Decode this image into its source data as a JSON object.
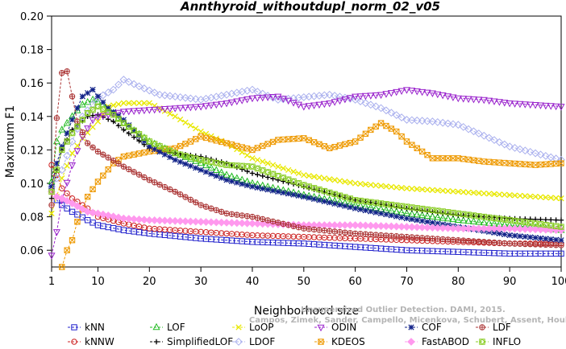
{
  "chart_data": {
    "type": "line",
    "title": "Annthyroid_withoutdupl_norm_02_v05",
    "xlabel": "Neighborhood size",
    "ylabel": "Maximum F1",
    "xlim": [
      1,
      100
    ],
    "ylim": [
      0.05,
      0.2
    ],
    "xticks": [
      1,
      10,
      20,
      30,
      40,
      50,
      60,
      70,
      80,
      90,
      100
    ],
    "yticks": [
      0.06,
      0.08,
      0.1,
      0.12,
      0.14,
      0.16,
      0.18,
      0.2
    ],
    "ytick_labels": [
      "0.06",
      "0.08",
      "0.10",
      "0.12",
      "0.14",
      "0.16",
      "0.18",
      "0.20"
    ],
    "grid": false,
    "legend_position": "bottom",
    "series": [
      {
        "name": "kNN",
        "color": "#2020cc",
        "marker": "square",
        "points": [
          [
            1,
            0.097
          ],
          [
            2,
            0.09
          ],
          [
            3,
            0.087
          ],
          [
            5,
            0.083
          ],
          [
            8,
            0.078
          ],
          [
            10,
            0.075
          ],
          [
            15,
            0.072
          ],
          [
            20,
            0.07
          ],
          [
            30,
            0.067
          ],
          [
            40,
            0.065
          ],
          [
            50,
            0.064
          ],
          [
            60,
            0.062
          ],
          [
            70,
            0.06
          ],
          [
            80,
            0.059
          ],
          [
            90,
            0.058
          ],
          [
            100,
            0.058
          ]
        ]
      },
      {
        "name": "kNNW",
        "color": "#cc2020",
        "marker": "circle",
        "points": [
          [
            1,
            0.111
          ],
          [
            2,
            0.105
          ],
          [
            3,
            0.097
          ],
          [
            5,
            0.091
          ],
          [
            8,
            0.085
          ],
          [
            10,
            0.08
          ],
          [
            15,
            0.076
          ],
          [
            20,
            0.073
          ],
          [
            30,
            0.071
          ],
          [
            40,
            0.069
          ],
          [
            50,
            0.068
          ],
          [
            60,
            0.067
          ],
          [
            70,
            0.066
          ],
          [
            80,
            0.065
          ],
          [
            90,
            0.064
          ],
          [
            100,
            0.064
          ]
        ]
      },
      {
        "name": "LOF",
        "color": "#22bb22",
        "marker": "triangle-up",
        "points": [
          [
            1,
            0.101
          ],
          [
            2,
            0.125
          ],
          [
            3,
            0.132
          ],
          [
            5,
            0.14
          ],
          [
            7,
            0.147
          ],
          [
            9,
            0.15
          ],
          [
            11,
            0.147
          ],
          [
            13,
            0.142
          ],
          [
            15,
            0.136
          ],
          [
            20,
            0.125
          ],
          [
            25,
            0.118
          ],
          [
            30,
            0.112
          ],
          [
            35,
            0.105
          ],
          [
            40,
            0.1
          ],
          [
            50,
            0.093
          ],
          [
            60,
            0.087
          ],
          [
            70,
            0.082
          ],
          [
            80,
            0.078
          ],
          [
            90,
            0.075
          ],
          [
            100,
            0.072
          ]
        ]
      },
      {
        "name": "SimplifiedLOF",
        "color": "#000000",
        "marker": "plus",
        "points": [
          [
            1,
            0.091
          ],
          [
            2,
            0.108
          ],
          [
            3,
            0.12
          ],
          [
            5,
            0.132
          ],
          [
            8,
            0.14
          ],
          [
            10,
            0.141
          ],
          [
            13,
            0.137
          ],
          [
            15,
            0.132
          ],
          [
            20,
            0.121
          ],
          [
            25,
            0.118
          ],
          [
            30,
            0.116
          ],
          [
            35,
            0.112
          ],
          [
            40,
            0.106
          ],
          [
            50,
            0.098
          ],
          [
            60,
            0.09
          ],
          [
            70,
            0.085
          ],
          [
            80,
            0.081
          ],
          [
            90,
            0.079
          ],
          [
            100,
            0.078
          ]
        ]
      },
      {
        "name": "LoOP",
        "color": "#e8e800",
        "marker": "cross",
        "points": [
          [
            1,
            0.082
          ],
          [
            2,
            0.092
          ],
          [
            3,
            0.103
          ],
          [
            5,
            0.118
          ],
          [
            7,
            0.127
          ],
          [
            10,
            0.137
          ],
          [
            12,
            0.146
          ],
          [
            15,
            0.148
          ],
          [
            20,
            0.148
          ],
          [
            25,
            0.14
          ],
          [
            30,
            0.131
          ],
          [
            35,
            0.124
          ],
          [
            40,
            0.115
          ],
          [
            50,
            0.105
          ],
          [
            60,
            0.1
          ],
          [
            70,
            0.097
          ],
          [
            80,
            0.095
          ],
          [
            90,
            0.093
          ],
          [
            100,
            0.091
          ]
        ]
      },
      {
        "name": "LDOF",
        "color": "#aab0ee",
        "marker": "diamond",
        "points": [
          [
            1,
            0.098
          ],
          [
            3,
            0.108
          ],
          [
            5,
            0.125
          ],
          [
            7,
            0.14
          ],
          [
            10,
            0.151
          ],
          [
            13,
            0.156
          ],
          [
            15,
            0.162
          ],
          [
            18,
            0.158
          ],
          [
            22,
            0.153
          ],
          [
            30,
            0.15
          ],
          [
            40,
            0.156
          ],
          [
            45,
            0.15
          ],
          [
            55,
            0.153
          ],
          [
            60,
            0.15
          ],
          [
            65,
            0.145
          ],
          [
            70,
            0.138
          ],
          [
            75,
            0.137
          ],
          [
            80,
            0.135
          ],
          [
            90,
            0.122
          ],
          [
            95,
            0.118
          ],
          [
            100,
            0.114
          ]
        ]
      },
      {
        "name": "ODIN",
        "color": "#9922cc",
        "marker": "triangle-down",
        "points": [
          [
            1,
            0.057
          ],
          [
            2,
            0.071
          ],
          [
            3,
            0.09
          ],
          [
            5,
            0.111
          ],
          [
            7,
            0.128
          ],
          [
            9,
            0.138
          ],
          [
            10,
            0.14
          ],
          [
            12,
            0.141
          ],
          [
            15,
            0.143
          ],
          [
            20,
            0.144
          ],
          [
            25,
            0.145
          ],
          [
            30,
            0.146
          ],
          [
            35,
            0.148
          ],
          [
            40,
            0.151
          ],
          [
            45,
            0.152
          ],
          [
            50,
            0.146
          ],
          [
            55,
            0.148
          ],
          [
            60,
            0.152
          ],
          [
            65,
            0.153
          ],
          [
            70,
            0.156
          ],
          [
            75,
            0.154
          ],
          [
            80,
            0.151
          ],
          [
            85,
            0.15
          ],
          [
            90,
            0.148
          ],
          [
            95,
            0.147
          ],
          [
            100,
            0.146
          ]
        ]
      },
      {
        "name": "KDEOS",
        "color": "#ee9900",
        "marker": "square-x",
        "points": [
          [
            3,
            0.05
          ],
          [
            4,
            0.06
          ],
          [
            5,
            0.066
          ],
          [
            6,
            0.077
          ],
          [
            8,
            0.092
          ],
          [
            10,
            0.101
          ],
          [
            13,
            0.112
          ],
          [
            15,
            0.116
          ],
          [
            20,
            0.119
          ],
          [
            25,
            0.121
          ],
          [
            28,
            0.125
          ],
          [
            30,
            0.128
          ],
          [
            35,
            0.124
          ],
          [
            40,
            0.12
          ],
          [
            45,
            0.126
          ],
          [
            50,
            0.127
          ],
          [
            55,
            0.121
          ],
          [
            60,
            0.125
          ],
          [
            63,
            0.132
          ],
          [
            65,
            0.136
          ],
          [
            68,
            0.131
          ],
          [
            70,
            0.125
          ],
          [
            75,
            0.115
          ],
          [
            80,
            0.115
          ],
          [
            85,
            0.113
          ],
          [
            90,
            0.112
          ],
          [
            95,
            0.111
          ],
          [
            100,
            0.112
          ]
        ]
      },
      {
        "name": "COF",
        "color": "#112288",
        "marker": "asterisk",
        "points": [
          [
            1,
            0.098
          ],
          [
            2,
            0.112
          ],
          [
            3,
            0.122
          ],
          [
            5,
            0.138
          ],
          [
            7,
            0.152
          ],
          [
            9,
            0.156
          ],
          [
            10,
            0.152
          ],
          [
            12,
            0.145
          ],
          [
            15,
            0.138
          ],
          [
            20,
            0.122
          ],
          [
            25,
            0.114
          ],
          [
            30,
            0.108
          ],
          [
            35,
            0.102
          ],
          [
            40,
            0.098
          ],
          [
            50,
            0.092
          ],
          [
            60,
            0.085
          ],
          [
            70,
            0.079
          ],
          [
            80,
            0.074
          ],
          [
            90,
            0.069
          ],
          [
            100,
            0.066
          ]
        ]
      },
      {
        "name": "FastABOD",
        "color": "#ff99ee",
        "marker": "diamond-filled",
        "points": [
          [
            1,
            0.095
          ],
          [
            2,
            0.092
          ],
          [
            3,
            0.091
          ],
          [
            5,
            0.088
          ],
          [
            8,
            0.083
          ],
          [
            10,
            0.082
          ],
          [
            15,
            0.079
          ],
          [
            20,
            0.078
          ],
          [
            30,
            0.077
          ],
          [
            40,
            0.076
          ],
          [
            50,
            0.075
          ],
          [
            60,
            0.075
          ],
          [
            70,
            0.074
          ],
          [
            80,
            0.073
          ],
          [
            90,
            0.073
          ],
          [
            100,
            0.072
          ]
        ]
      },
      {
        "name": "LDF",
        "color": "#aa3333",
        "marker": "circle-plus",
        "points": [
          [
            1,
            0.087
          ],
          [
            2,
            0.139
          ],
          [
            3,
            0.166
          ],
          [
            4,
            0.167
          ],
          [
            6,
            0.137
          ],
          [
            8,
            0.124
          ],
          [
            10,
            0.119
          ],
          [
            15,
            0.11
          ],
          [
            20,
            0.102
          ],
          [
            25,
            0.095
          ],
          [
            30,
            0.087
          ],
          [
            35,
            0.082
          ],
          [
            40,
            0.08
          ],
          [
            50,
            0.073
          ],
          [
            60,
            0.07
          ],
          [
            70,
            0.068
          ],
          [
            80,
            0.066
          ],
          [
            90,
            0.064
          ],
          [
            100,
            0.063
          ]
        ]
      },
      {
        "name": "INFLO",
        "color": "#88cc22",
        "marker": "square-diamond",
        "points": [
          [
            1,
            0.095
          ],
          [
            2,
            0.108
          ],
          [
            3,
            0.12
          ],
          [
            5,
            0.13
          ],
          [
            8,
            0.142
          ],
          [
            10,
            0.146
          ],
          [
            13,
            0.141
          ],
          [
            15,
            0.136
          ],
          [
            20,
            0.125
          ],
          [
            25,
            0.118
          ],
          [
            30,
            0.114
          ],
          [
            35,
            0.111
          ],
          [
            40,
            0.11
          ],
          [
            50,
            0.099
          ],
          [
            60,
            0.09
          ],
          [
            70,
            0.086
          ],
          [
            80,
            0.082
          ],
          [
            90,
            0.078
          ],
          [
            100,
            0.074
          ]
        ]
      }
    ]
  },
  "watermark": {
    "line1": "Unsupervised Outlier Detection. DAMI, 2015.",
    "line2": "Campos, Zimek, Sander, Campello, Micenkova, Schubert, Assent, Houle"
  }
}
